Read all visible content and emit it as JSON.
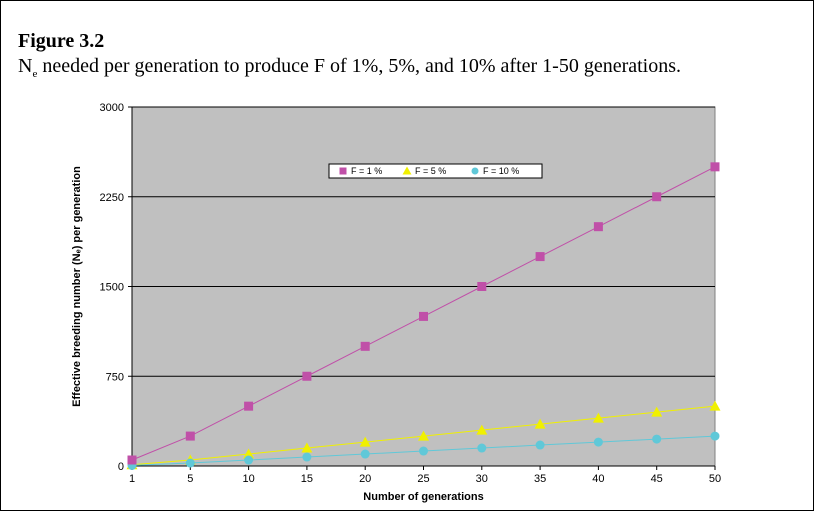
{
  "figure": {
    "title": "Figure 3.2",
    "caption_prefix": "N",
    "caption_sub": "e",
    "caption_rest": " needed per generation to produce F of 1%, 5%, and 10% after 1-50 generations."
  },
  "chart_data": {
    "type": "line",
    "title": "",
    "xlabel": "Number of generations",
    "ylabel": "Effective breeding number (Nₑ) per generation",
    "categories": [
      "1",
      "5",
      "10",
      "15",
      "20",
      "25",
      "30",
      "35",
      "40",
      "45",
      "50"
    ],
    "x": [
      1,
      5,
      10,
      15,
      20,
      25,
      30,
      35,
      40,
      45,
      50
    ],
    "ylim": [
      0,
      3000
    ],
    "yticks": [
      "0",
      "750",
      "1500",
      "2250",
      "3000"
    ],
    "ytick_values": [
      0,
      750,
      1500,
      2250,
      3000
    ],
    "grid": true,
    "legend_position": "top-center",
    "plot_background": "#c0c0c0",
    "series": [
      {
        "name": "F = 1 %",
        "marker": "square",
        "color": "#c050a8",
        "values": [
          50,
          250,
          500,
          750,
          1000,
          1250,
          1500,
          1750,
          2000,
          2250,
          2500
        ]
      },
      {
        "name": "F = 5 %",
        "marker": "triangle",
        "color": "#f0f000",
        "values": [
          10,
          50,
          100,
          150,
          200,
          250,
          300,
          350,
          400,
          450,
          500
        ]
      },
      {
        "name": "F = 10 %",
        "marker": "circle",
        "color": "#60c8d8",
        "values": [
          5,
          25,
          50,
          75,
          100,
          125,
          150,
          175,
          200,
          225,
          250
        ]
      }
    ]
  }
}
